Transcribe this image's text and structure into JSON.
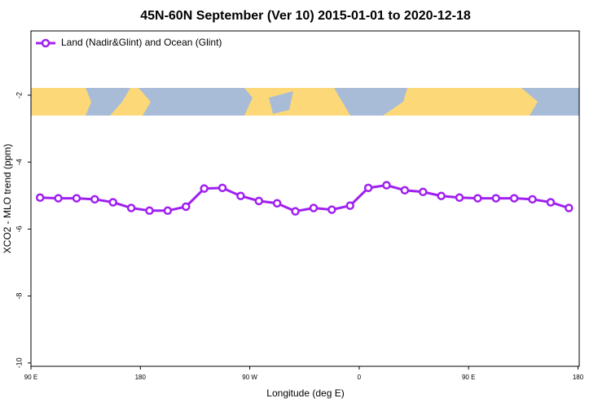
{
  "chart_data": {
    "type": "line",
    "title": "45N-60N September (Ver 10)   2015-01-01 to 2020-12-18",
    "x_label": "Longitude (deg E)",
    "y_label": "XCO2 - MLO trend (ppm)",
    "x": [
      97.5,
      112.5,
      127.5,
      142.5,
      157.5,
      172.5,
      187.5,
      202.5,
      217.5,
      232.5,
      247.5,
      262.5,
      277.5,
      292.5,
      307.5,
      322.5,
      337.5,
      352.5,
      367.5,
      382.5,
      397.5,
      412.5,
      427.5,
      442.5,
      457.5,
      472.5,
      487.5,
      502.5,
      517.5,
      532.5
    ],
    "series": [
      {
        "name": "Land (Nadir&Glint) and Ocean (Glint)",
        "color": "#a020f0",
        "values": [
          -5.06,
          -5.08,
          -5.08,
          -5.11,
          -5.2,
          -5.37,
          -5.45,
          -5.45,
          -5.33,
          -4.79,
          -4.77,
          -5.01,
          -5.16,
          -5.23,
          -5.47,
          -5.37,
          -5.42,
          -5.3,
          -4.77,
          -4.69,
          -4.84,
          -4.89,
          -5.01,
          -5.06,
          -5.08,
          -5.08,
          -5.08,
          -5.11,
          -5.2,
          -5.37
        ]
      }
    ],
    "xlim": [
      90,
      541
    ],
    "ylim": [
      -10.1,
      -0.08
    ],
    "xticks": [
      {
        "value": 90,
        "label": "90 E"
      },
      180,
      {
        "value": 270,
        "label": "90 W"
      },
      {
        "value": 360,
        "label": "0"
      },
      {
        "value": 450,
        "label": "90 E"
      },
      {
        "value": 540,
        "label": "180"
      }
    ],
    "yticks": [
      -10,
      -8,
      -6,
      -4,
      -2
    ],
    "legend": "top-left"
  }
}
